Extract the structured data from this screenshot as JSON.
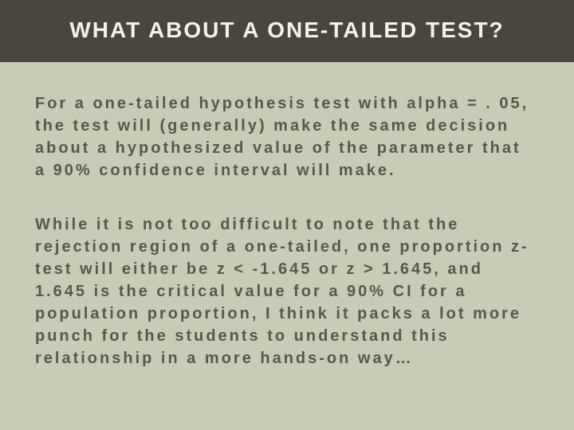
{
  "header": {
    "title": "WHAT ABOUT A ONE-TAILED TEST?",
    "bg_color": "#4a453f",
    "title_color": "#f2f2ed",
    "title_fontsize": 28,
    "title_letter_spacing": 2
  },
  "body": {
    "bg_color": "#c8ccb5",
    "text_color": "#56584c",
    "fontsize": 20,
    "letter_spacing": 3,
    "line_height": 1.4,
    "paragraphs": [
      "For a one-tailed hypothesis test with alpha = . 05, the test will (generally) make the same decision about a hypothesized value of the parameter that a 90% confidence interval will make.",
      "While it is not too difficult to note that the rejection region of a one-tailed, one proportion z-test will either be z < -1.645 or z > 1.645, and 1.645 is the critical value for a 90% CI for a population proportion, I think it packs a lot more punch for the students to understand this relationship in a more hands-on way…"
    ]
  }
}
